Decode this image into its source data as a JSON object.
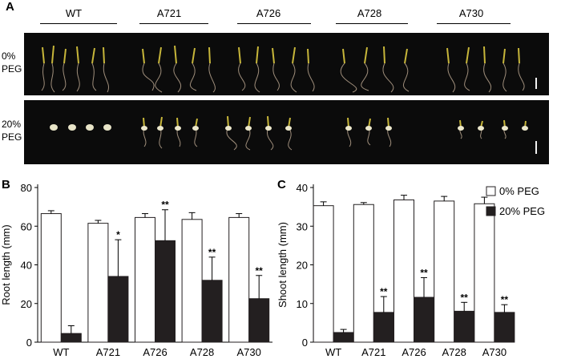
{
  "panel_a": {
    "letter": "A",
    "genotypes": [
      "WT",
      "A721",
      "A726",
      "A728",
      "A730"
    ],
    "rows": [
      {
        "label_line1": "0%",
        "label_line2": "PEG"
      },
      {
        "label_line1": "20%",
        "label_line2": "PEG"
      }
    ]
  },
  "panel_b": {
    "letter": "B"
  },
  "panel_c": {
    "letter": "C"
  },
  "chart_data": [
    {
      "type": "bar",
      "panel": "B",
      "ylabel": "Root length (mm)",
      "ylim": [
        0,
        80
      ],
      "yticks": [
        0,
        20,
        40,
        60,
        80
      ],
      "categories": [
        "WT",
        "A721",
        "A726",
        "A728",
        "A730"
      ],
      "series": [
        {
          "name": "0% PEG",
          "color": "#ffffff",
          "values": [
            66.5,
            61.5,
            64.5,
            63.5,
            64.5
          ],
          "errors": [
            1.5,
            1.5,
            2.0,
            3.5,
            2.0
          ],
          "significance": [
            "",
            "",
            "",
            "",
            ""
          ]
        },
        {
          "name": "20% PEG",
          "color": "#231f20",
          "values": [
            4.5,
            34.0,
            52.5,
            32.0,
            22.5
          ],
          "errors": [
            4.0,
            19.0,
            16.0,
            12.0,
            12.0
          ],
          "significance": [
            "",
            "*",
            "**",
            "**",
            "**"
          ]
        }
      ],
      "legend": "none"
    },
    {
      "type": "bar",
      "panel": "C",
      "ylabel": "Shoot length (mm)",
      "ylim": [
        0,
        40
      ],
      "yticks": [
        0,
        10,
        20,
        30,
        40
      ],
      "categories": [
        "WT",
        "A721",
        "A726",
        "A728",
        "A730"
      ],
      "series": [
        {
          "name": "0% PEG",
          "color": "#ffffff",
          "values": [
            35.3,
            35.6,
            36.8,
            36.5,
            35.8
          ],
          "errors": [
            1.0,
            0.5,
            1.2,
            1.2,
            1.7
          ],
          "significance": [
            "",
            "",
            "",
            "",
            ""
          ]
        },
        {
          "name": "20% PEG",
          "color": "#231f20",
          "values": [
            2.5,
            7.7,
            11.6,
            8.0,
            7.7
          ],
          "errors": [
            0.8,
            4.1,
            5.1,
            2.3,
            2.0
          ],
          "significance": [
            "",
            "**",
            "**",
            "**",
            "**"
          ]
        }
      ],
      "legend": "top-right"
    }
  ]
}
